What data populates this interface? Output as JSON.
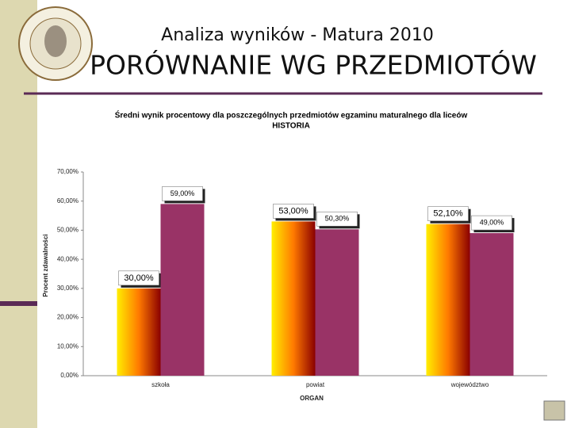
{
  "header": {
    "title": "Analiza wyników  - Matura 2010",
    "subtitle": "PORÓWNANIE WG PRZEDMIOTÓW"
  },
  "chart_data": {
    "type": "bar",
    "title": [
      "Średni wynik procentowy dla poszczególnych przedmiotów egzaminu maturalnego dla liceów",
      "HISTORIA"
    ],
    "ylabel": "Procent zdawalności",
    "xlabel": "ORGAN",
    "categories": [
      "szkoła",
      "powiat",
      "województwo"
    ],
    "series": [
      {
        "color": "#ff7a00",
        "values": [
          30,
          53,
          52.1
        ],
        "value_labels": [
          "30,00%",
          "53,00%",
          "52,10%"
        ]
      },
      {
        "color": "#993366",
        "values": [
          59,
          50.3,
          49
        ],
        "value_labels": [
          "59,00%",
          "50,30%",
          "49,00%"
        ]
      }
    ],
    "ylim": [
      0,
      70
    ],
    "yticks": [
      {
        "value": 0,
        "label": "0,00%"
      },
      {
        "value": 10,
        "label": "10,00%"
      },
      {
        "value": 20,
        "label": "20,00%"
      },
      {
        "value": 30,
        "label": "30,00%"
      },
      {
        "value": 40,
        "label": "40,00%"
      },
      {
        "value": 50,
        "label": "50,00%"
      },
      {
        "value": 60,
        "label": "60,00%"
      },
      {
        "value": 70,
        "label": "70,00%"
      }
    ],
    "grid": false
  }
}
